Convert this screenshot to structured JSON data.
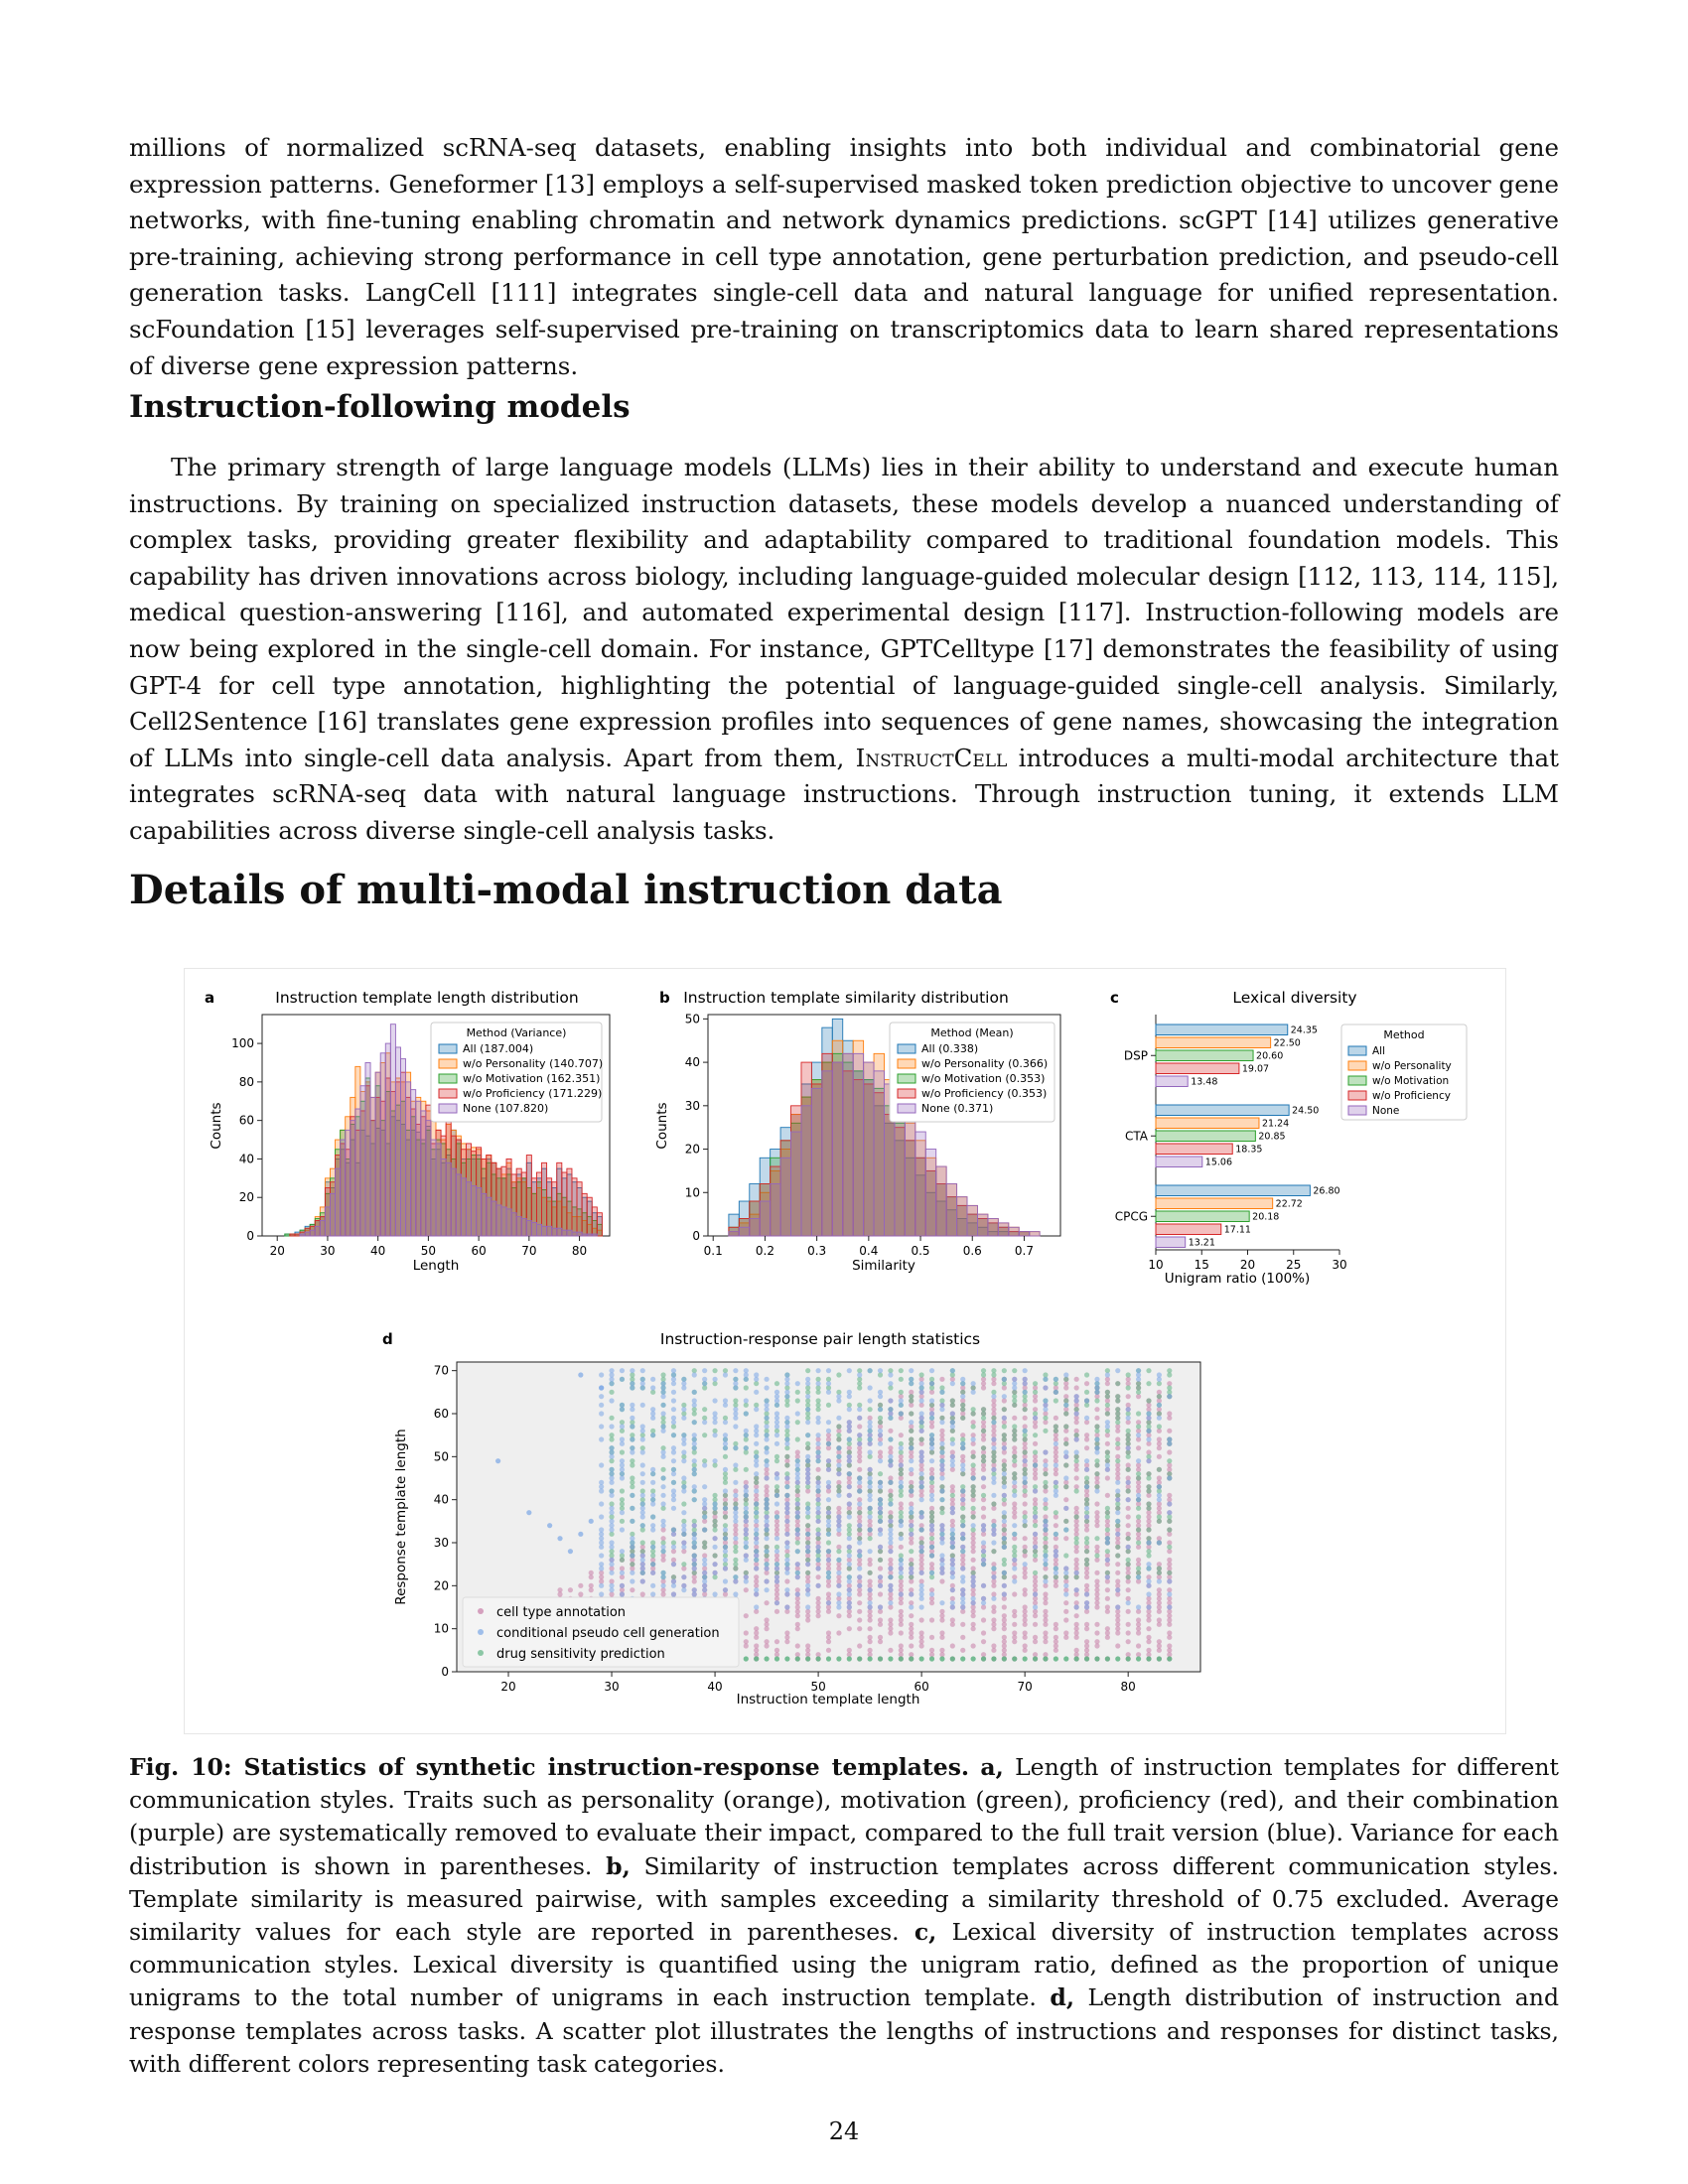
{
  "paragraph_intro": "millions of normalized scRNA-seq datasets, enabling insights into both individual and combinatorial gene expression patterns. Geneformer [13] employs a self-supervised masked token prediction objective to uncover gene networks, with fine-tuning enabling chromatin and network dynamics predictions. scGPT [14] utilizes generative pre-training, achieving strong performance in cell type annotation, gene perturbation prediction, and pseudo-cell generation tasks. LangCell [111] integrates single-cell data and natural language for unified representation. scFoundation [15] leverages self-supervised pre-training on transcriptomics data to learn shared representations of diverse gene expression patterns.",
  "section_instruction_heading": "Instruction-following models",
  "paragraph_instruction_part1": "The primary strength of large language models (LLMs) lies in their ability to understand and execute human instructions. By training on specialized instruction datasets, these models develop a nuanced understanding of complex tasks, providing greater flexibility and adaptability compared to traditional foundation models. This capability has driven innovations across biology, including language-guided molecular design [112, 113, 114, 115], medical question-answering [116], and automated experimental design [117]. Instruction-following models are now being explored in the single-cell domain. For instance, GPTCelltype [17] demonstrates the feasibility of using GPT-4 for cell type annotation, highlighting the potential of language-guided single-cell analysis. Similarly, Cell2Sentence [16] translates gene expression profiles into sequences of gene names, showcasing the integration of LLMs into single-cell data analysis. Apart from them, ",
  "model_name": "InstructCell",
  "paragraph_instruction_part2": " introduces a multi-modal architecture that integrates scRNA-seq data with natural language instructions. Through instruction tuning, it extends LLM capabilities across diverse single-cell analysis tasks.",
  "section_details_heading": "Details of multi-modal instruction data",
  "figure": {
    "panel_a": {
      "letter": "a",
      "title": "Instruction template length distribution",
      "xlabel": "Length",
      "ylabel": "Counts",
      "xticks": [
        "20",
        "30",
        "40",
        "50",
        "60",
        "70",
        "80"
      ],
      "yticks": [
        "0",
        "20",
        "40",
        "60",
        "80",
        "100"
      ],
      "legend_title": "Method (Variance)",
      "legend": [
        "All (187.004)",
        "w/o Personality (140.707)",
        "w/o Motivation (162.351)",
        "w/o Proficiency (171.229)",
        "None (107.820)"
      ]
    },
    "panel_b": {
      "letter": "b",
      "title": "Instruction template similarity distribution",
      "xlabel": "Similarity",
      "ylabel": "Counts",
      "xticks": [
        "0.1",
        "0.2",
        "0.3",
        "0.4",
        "0.5",
        "0.6",
        "0.7"
      ],
      "yticks": [
        "0",
        "10",
        "20",
        "30",
        "40",
        "50"
      ],
      "legend_title": "Method (Mean)",
      "legend": [
        "All (0.338)",
        "w/o Personality (0.366)",
        "w/o Motivation (0.353)",
        "w/o Proficiency (0.353)",
        "None (0.371)"
      ]
    },
    "panel_c": {
      "letter": "c",
      "title": "Lexical diversity",
      "xlabel": "Unigram ratio (100%)",
      "xticks": [
        "10",
        "15",
        "20",
        "25",
        "30"
      ],
      "legend_title": "Method",
      "legend": [
        "All",
        "w/o Personality",
        "w/o Motivation",
        "w/o Proficiency",
        "None"
      ]
    },
    "panel_d": {
      "letter": "d",
      "title": "Instruction-response pair length statistics",
      "xlabel": "Instruction template length",
      "ylabel": "Response template length",
      "xticks": [
        "20",
        "30",
        "40",
        "50",
        "60",
        "70",
        "80"
      ],
      "yticks": [
        "0",
        "10",
        "20",
        "30",
        "40",
        "50",
        "60",
        "70"
      ],
      "legend": [
        "cell type annotation",
        "conditional pseudo cell generation",
        "drug sensitivity prediction"
      ]
    },
    "colors": {
      "all": "#1f77b4",
      "personality": "#ff7f0e",
      "motivation": "#2ca02c",
      "proficiency": "#d62728",
      "none": "#9467bd",
      "cta_scatter": "#c77ca6",
      "cpcg_scatter": "#7aa6e6",
      "dsp_scatter": "#5fb383"
    }
  },
  "chart_data": [
    {
      "type": "bar",
      "panel": "a",
      "title": "Instruction template length distribution",
      "xlabel": "Length",
      "ylabel": "Counts",
      "xlim": [
        17,
        86
      ],
      "ylim": [
        0,
        115
      ],
      "x": [
        20,
        21,
        22,
        23,
        24,
        25,
        26,
        27,
        28,
        29,
        30,
        31,
        32,
        33,
        34,
        35,
        36,
        37,
        38,
        39,
        40,
        41,
        42,
        43,
        44,
        45,
        46,
        47,
        48,
        49,
        50,
        51,
        52,
        53,
        54,
        55,
        56,
        57,
        58,
        59,
        60,
        61,
        62,
        63,
        64,
        65,
        66,
        67,
        68,
        69,
        70,
        71,
        72,
        73,
        74,
        75,
        76,
        77,
        78,
        79,
        80,
        81,
        82,
        83,
        84
      ],
      "series": [
        {
          "name": "All (187.004)",
          "values": [
            0,
            0,
            1,
            1,
            2,
            3,
            5,
            6,
            8,
            10,
            28,
            25,
            40,
            45,
            38,
            50,
            38,
            55,
            52,
            48,
            56,
            55,
            48,
            62,
            60,
            58,
            50,
            55,
            54,
            50,
            57,
            40,
            45,
            38,
            42,
            55,
            50,
            40,
            45,
            40,
            42,
            30,
            40,
            38,
            35,
            30,
            35,
            28,
            32,
            30,
            38,
            28,
            30,
            35,
            28,
            25,
            35,
            30,
            32,
            28,
            25,
            20,
            18,
            12,
            10
          ]
        },
        {
          "name": "w/o Personality (140.707)",
          "values": [
            0,
            0,
            0,
            1,
            1,
            2,
            3,
            5,
            10,
            15,
            30,
            35,
            50,
            55,
            62,
            72,
            88,
            75,
            80,
            72,
            85,
            90,
            95,
            80,
            82,
            80,
            85,
            70,
            72,
            70,
            65,
            60,
            55,
            50,
            58,
            55,
            52,
            48,
            45,
            46,
            45,
            40,
            42,
            38,
            35,
            32,
            38,
            28,
            30,
            28,
            25,
            22,
            25,
            20,
            18,
            15,
            18,
            15,
            12,
            10,
            10,
            8,
            6,
            4,
            3
          ]
        },
        {
          "name": "w/o Motivation (162.351)",
          "values": [
            0,
            0,
            1,
            1,
            1,
            3,
            4,
            6,
            9,
            12,
            22,
            30,
            45,
            55,
            40,
            58,
            62,
            70,
            82,
            60,
            78,
            60,
            75,
            65,
            68,
            70,
            55,
            62,
            50,
            48,
            55,
            45,
            50,
            48,
            45,
            40,
            48,
            38,
            40,
            42,
            40,
            35,
            38,
            32,
            30,
            30,
            32,
            25,
            28,
            30,
            25,
            22,
            28,
            24,
            20,
            18,
            22,
            20,
            18,
            15,
            14,
            12,
            10,
            8,
            6
          ]
        },
        {
          "name": "w/o Proficiency (171.229)",
          "values": [
            0,
            0,
            0,
            1,
            1,
            2,
            4,
            5,
            8,
            10,
            25,
            28,
            42,
            48,
            45,
            62,
            55,
            65,
            78,
            60,
            72,
            70,
            82,
            75,
            80,
            85,
            72,
            66,
            58,
            62,
            68,
            48,
            55,
            52,
            60,
            52,
            50,
            45,
            48,
            44,
            46,
            40,
            42,
            38,
            35,
            36,
            40,
            32,
            35,
            33,
            42,
            30,
            33,
            38,
            30,
            28,
            38,
            33,
            35,
            30,
            28,
            22,
            20,
            15,
            12
          ]
        },
        {
          "name": "None (107.820)",
          "values": [
            0,
            0,
            0,
            0,
            0,
            1,
            2,
            3,
            5,
            8,
            15,
            22,
            35,
            50,
            55,
            60,
            66,
            78,
            90,
            72,
            85,
            95,
            100,
            110,
            98,
            92,
            80,
            76,
            70,
            65,
            60,
            50,
            48,
            40,
            38,
            35,
            32,
            30,
            28,
            26,
            25,
            22,
            20,
            18,
            16,
            15,
            14,
            12,
            10,
            9,
            8,
            7,
            6,
            5,
            5,
            4,
            4,
            3,
            3,
            2,
            2,
            1,
            1,
            1,
            0
          ]
        }
      ]
    },
    {
      "type": "bar",
      "panel": "b",
      "title": "Instruction template similarity distribution",
      "xlabel": "Similarity",
      "ylabel": "Counts",
      "xlim": [
        0.09,
        0.77
      ],
      "ylim": [
        0,
        51
      ],
      "x": [
        0.14,
        0.16,
        0.18,
        0.2,
        0.22,
        0.24,
        0.26,
        0.28,
        0.3,
        0.32,
        0.34,
        0.36,
        0.38,
        0.4,
        0.42,
        0.44,
        0.46,
        0.48,
        0.5,
        0.52,
        0.54,
        0.56,
        0.58,
        0.6,
        0.62,
        0.64,
        0.66,
        0.68,
        0.7,
        0.72,
        0.74
      ],
      "series": [
        {
          "name": "All (0.338)",
          "values": [
            5,
            8,
            12,
            18,
            20,
            25,
            28,
            35,
            40,
            48,
            50,
            45,
            38,
            36,
            30,
            26,
            22,
            18,
            14,
            10,
            8,
            6,
            4,
            3,
            2,
            1,
            1,
            0,
            0,
            0,
            0
          ]
        },
        {
          "name": "w/o Personality (0.366)",
          "values": [
            1,
            3,
            5,
            10,
            15,
            20,
            28,
            32,
            36,
            40,
            45,
            42,
            45,
            40,
            42,
            36,
            30,
            26,
            22,
            18,
            16,
            12,
            9,
            7,
            5,
            4,
            3,
            2,
            1,
            1,
            0
          ]
        },
        {
          "name": "w/o Motivation (0.353)",
          "values": [
            2,
            4,
            8,
            12,
            18,
            22,
            26,
            32,
            36,
            40,
            42,
            40,
            38,
            36,
            34,
            30,
            26,
            22,
            18,
            15,
            12,
            9,
            7,
            5,
            4,
            3,
            2,
            1,
            1,
            0,
            0
          ]
        },
        {
          "name": "w/o Proficiency (0.353)",
          "values": [
            2,
            4,
            8,
            12,
            16,
            22,
            30,
            40,
            35,
            42,
            40,
            38,
            36,
            35,
            33,
            28,
            25,
            22,
            18,
            15,
            12,
            9,
            7,
            5,
            4,
            3,
            2,
            1,
            1,
            0,
            0
          ]
        },
        {
          "name": "None (0.371)",
          "values": [
            1,
            2,
            4,
            8,
            12,
            18,
            24,
            30,
            34,
            38,
            40,
            42,
            42,
            40,
            38,
            35,
            32,
            28,
            24,
            20,
            16,
            12,
            9,
            7,
            5,
            4,
            3,
            2,
            1,
            1,
            0
          ]
        }
      ]
    },
    {
      "type": "bar",
      "panel": "c",
      "orientation": "horizontal",
      "title": "Lexical diversity",
      "xlabel": "Unigram ratio (100%)",
      "xlim": [
        10,
        30
      ],
      "categories": [
        "DSP",
        "CTA",
        "CPCG"
      ],
      "series": [
        {
          "name": "All",
          "values": [
            24.35,
            24.5,
            26.8
          ]
        },
        {
          "name": "w/o Personality",
          "values": [
            22.5,
            21.24,
            22.72
          ]
        },
        {
          "name": "w/o Motivation",
          "values": [
            20.6,
            20.85,
            20.18
          ]
        },
        {
          "name": "w/o Proficiency",
          "values": [
            19.07,
            18.35,
            17.11
          ]
        },
        {
          "name": "None",
          "values": [
            13.48,
            15.06,
            13.21
          ]
        }
      ]
    },
    {
      "type": "scatter",
      "panel": "d",
      "title": "Instruction-response pair length statistics",
      "xlabel": "Instruction template length",
      "ylabel": "Response template length",
      "xlim": [
        15,
        87
      ],
      "ylim": [
        0,
        72
      ],
      "series": [
        {
          "name": "cell type annotation",
          "x_range": [
            22,
            84
          ],
          "y_range": [
            3,
            68
          ]
        },
        {
          "name": "conditional pseudo cell generation",
          "x_range": [
            19,
            84
          ],
          "y_range": [
            8,
            70
          ]
        },
        {
          "name": "drug sensitivity prediction",
          "x_range": [
            30,
            84
          ],
          "y_range": [
            3,
            70
          ]
        }
      ]
    }
  ],
  "caption": {
    "label": "Fig. 10: Statistics of synthetic instruction-response templates.",
    "a_tag": "a,",
    "a_text": " Length of instruction templates for different communication styles. Traits such as personality (orange), motivation (green), proficiency (red), and their combination (purple) are systematically removed to evaluate their impact, compared to the full trait version (blue). Variance for each distribution is shown in parentheses. ",
    "b_tag": "b,",
    "b_text": " Similarity of instruction templates across different communication styles. Template similarity is measured pairwise, with samples exceeding a similarity threshold of 0.75 excluded. Average similarity values for each style are reported in parentheses. ",
    "c_tag": "c,",
    "c_text": " Lexical diversity of instruction templates across communication styles. Lexical diversity is quantified using the unigram ratio, defined as the proportion of unique unigrams to the total number of unigrams in each instruction template. ",
    "d_tag": "d,",
    "d_text": " Length distribution of instruction and response templates across tasks. A scatter plot illustrates the lengths of instructions and responses for distinct tasks, with different colors representing task categories."
  },
  "page_number": "24"
}
